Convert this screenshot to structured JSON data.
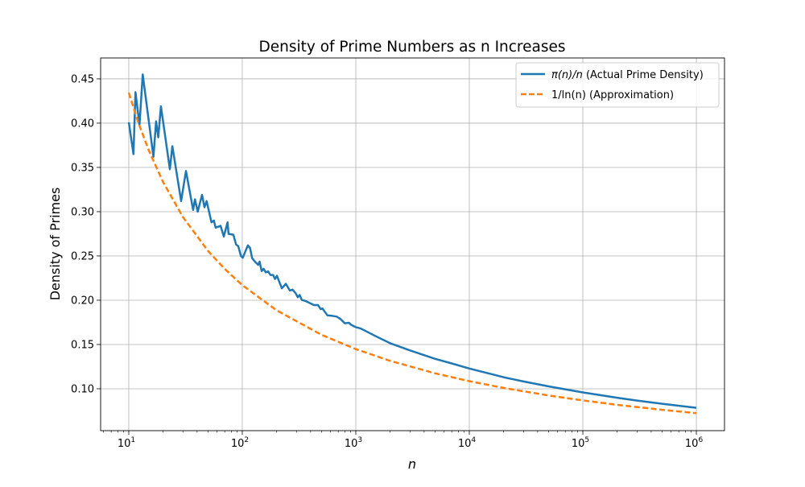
{
  "chart_data": {
    "type": "line",
    "title": "Density of Prime Numbers as n Increases",
    "xlabel": "n",
    "ylabel": "Density of Primes",
    "xscale": "log",
    "xlim": [
      5.65,
      1770000
    ],
    "ylim": [
      0.0527,
      0.4736
    ],
    "grid": true,
    "legend_position": "top-right",
    "x_ticks": [
      {
        "value": 10,
        "base": "10",
        "exp": "1"
      },
      {
        "value": 100,
        "base": "10",
        "exp": "2"
      },
      {
        "value": 1000,
        "base": "10",
        "exp": "3"
      },
      {
        "value": 10000,
        "base": "10",
        "exp": "4"
      },
      {
        "value": 100000,
        "base": "10",
        "exp": "5"
      },
      {
        "value": 1000000,
        "base": "10",
        "exp": "6"
      }
    ],
    "y_ticks": [
      "0.10",
      "0.15",
      "0.20",
      "0.25",
      "0.30",
      "0.35",
      "0.40",
      "0.45"
    ],
    "series": [
      {
        "name": "π(n)/n (Actual Prime Density)",
        "legend_math": "π(n)/n",
        "legend_text": " (Actual Prime Density)",
        "color": "#1f77b4",
        "style": "solid",
        "x": [
          10,
          11,
          11.45,
          12.43,
          13.27,
          16.5,
          17.4,
          18.2,
          19.2,
          23,
          24.2,
          28.9,
          31.9,
          36.9,
          38.3,
          40.5,
          44.2,
          46.4,
          48.5,
          53.5,
          56.2,
          58.3,
          64.4,
          68.7,
          74.2,
          75.7,
          83.5,
          88.1,
          92.2,
          97.3,
          101,
          112,
          117,
          122,
          129,
          138,
          142,
          148,
          154,
          161,
          169,
          177,
          187,
          194,
          202,
          223,
          242,
          262,
          277,
          295,
          308,
          320,
          335,
          363,
          428,
          464,
          490,
          509,
          562,
          610,
          679,
          737,
          800,
          868,
          916,
          995,
          1109,
          1500,
          2000,
          3000,
          5000,
          7000,
          10000,
          20000,
          30000,
          50000,
          100000,
          200000,
          300000,
          500000,
          1000000
        ],
        "y": [
          0.401,
          0.365,
          0.435,
          0.398,
          0.455,
          0.362,
          0.402,
          0.384,
          0.419,
          0.348,
          0.374,
          0.312,
          0.346,
          0.302,
          0.314,
          0.3,
          0.319,
          0.305,
          0.312,
          0.288,
          0.29,
          0.282,
          0.284,
          0.272,
          0.288,
          0.275,
          0.274,
          0.263,
          0.261,
          0.25,
          0.248,
          0.262,
          0.259,
          0.2475,
          0.2437,
          0.24,
          0.2437,
          0.233,
          0.2355,
          0.2315,
          0.2325,
          0.2285,
          0.2285,
          0.224,
          0.2276,
          0.2134,
          0.2185,
          0.211,
          0.212,
          0.208,
          0.2033,
          0.206,
          0.2003,
          0.199,
          0.1945,
          0.1945,
          0.19,
          0.1906,
          0.183,
          0.1825,
          0.1815,
          0.1785,
          0.174,
          0.1745,
          0.172,
          0.1697,
          0.168,
          0.1593,
          0.1515,
          0.1433,
          0.1338,
          0.1286,
          0.1229,
          0.1131,
          0.1082,
          0.1027,
          0.0959,
          0.0899,
          0.0867,
          0.0831,
          0.0785
        ]
      },
      {
        "name": "1/ln(n) (Approximation)",
        "legend_math": "1/ln(n)",
        "legend_text": " (Approximation)",
        "color": "#ff7f0e",
        "style": "dashed",
        "x": [
          10,
          12,
          15,
          20,
          30,
          50,
          70,
          100,
          200,
          500,
          1000,
          2000,
          5000,
          10000,
          20000,
          50000,
          100000,
          200000,
          500000,
          1000000
        ],
        "y": [
          0.4343,
          0.4024,
          0.3693,
          0.3338,
          0.294,
          0.2556,
          0.2354,
          0.2171,
          0.1887,
          0.1609,
          0.1448,
          0.1316,
          0.1174,
          0.1086,
          0.101,
          0.0924,
          0.0869,
          0.0819,
          0.0762,
          0.0724
        ]
      }
    ]
  }
}
